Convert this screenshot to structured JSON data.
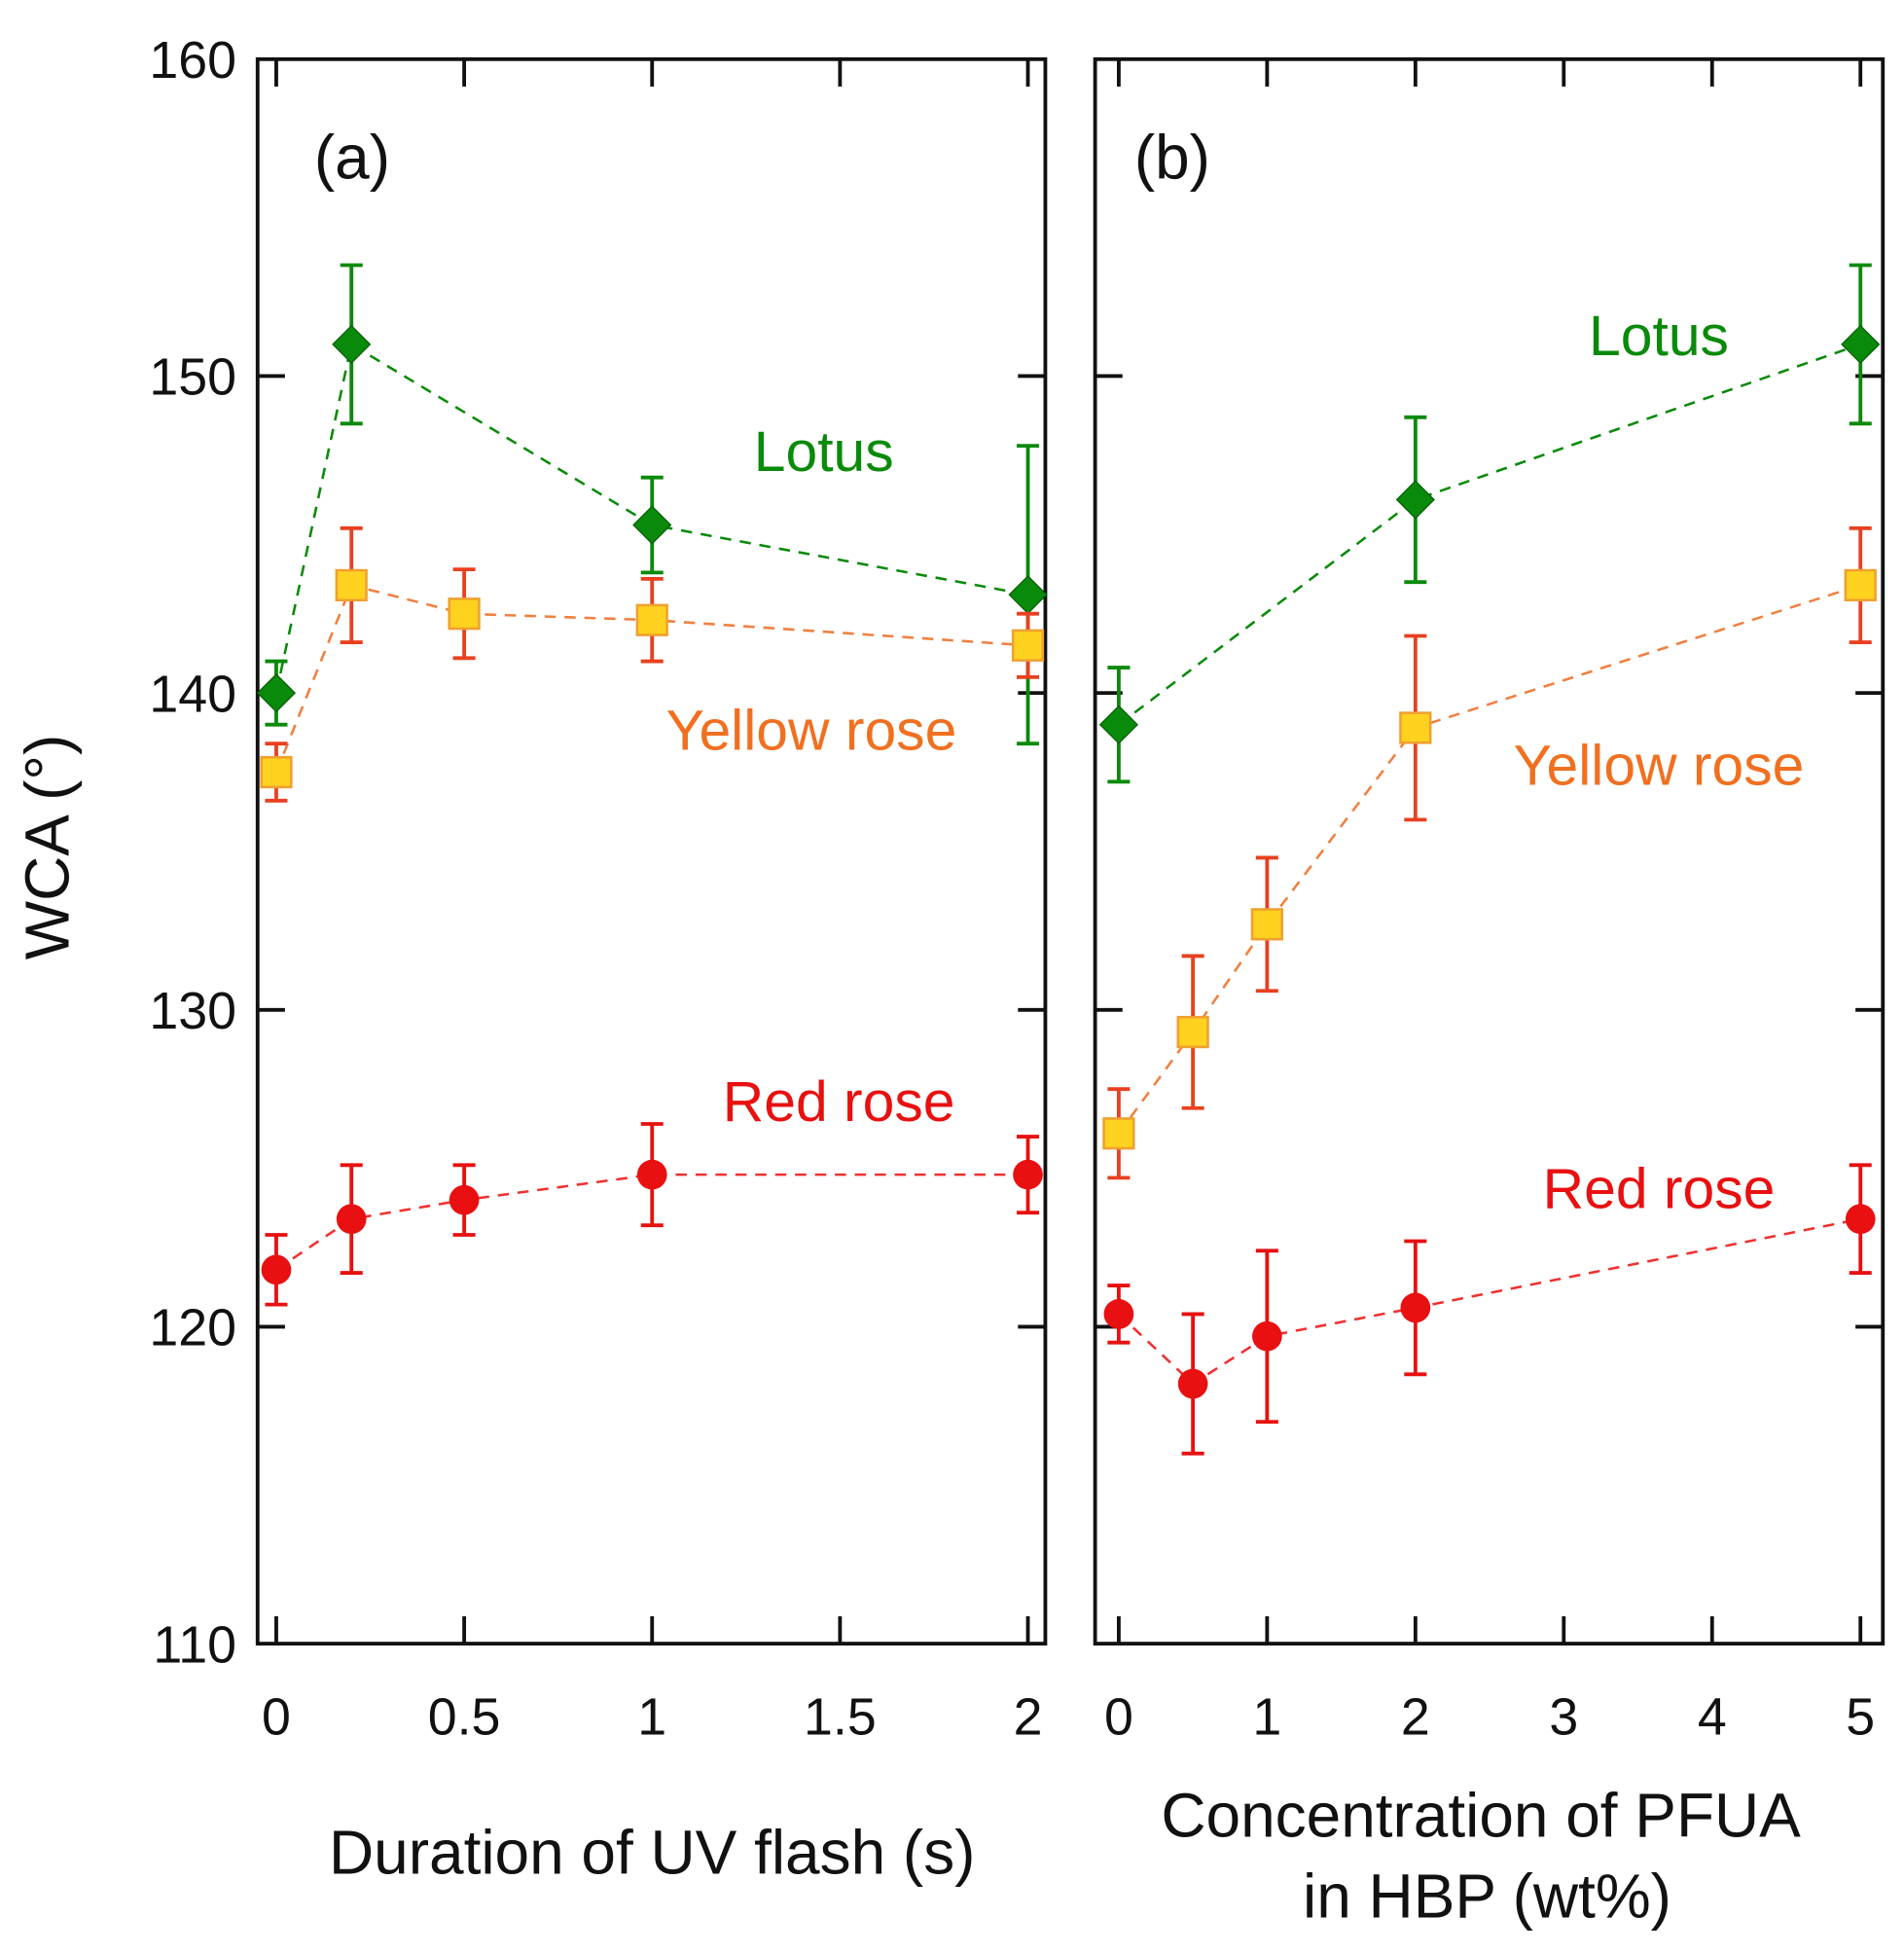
{
  "chart_data": [
    {
      "type": "line",
      "panel_label": "(a)",
      "xlabel": "Duration of UV flash (s)",
      "ylabel": "WCA (°)",
      "xlim": [
        -0.05,
        2.05
      ],
      "ylim": [
        110,
        160
      ],
      "xticks": [
        0,
        0.5,
        1,
        1.5,
        2
      ],
      "xtick_labels": [
        "0",
        "0.5",
        "1",
        "1.5",
        "2"
      ],
      "yticks": [
        110,
        120,
        130,
        140,
        150,
        160
      ],
      "ytick_labels": [
        "110",
        "120",
        "130",
        "140",
        "150",
        "160"
      ],
      "series": [
        {
          "name": "Lotus",
          "color": "#0a8a0a",
          "marker": "diamond",
          "x": [
            0,
            0.2,
            1,
            2
          ],
          "y": [
            140.0,
            151.0,
            145.3,
            143.1
          ],
          "err": [
            1.0,
            2.5,
            1.5,
            4.7
          ]
        },
        {
          "name": "Yellow rose",
          "color": "#f07020",
          "marker": "square",
          "x": [
            0,
            0.2,
            0.5,
            1,
            2
          ],
          "y": [
            137.5,
            143.4,
            142.5,
            142.3,
            141.5
          ],
          "err": [
            0.9,
            1.8,
            1.4,
            1.3,
            1.0
          ]
        },
        {
          "name": "Red rose",
          "color": "#e81010",
          "marker": "circle",
          "x": [
            0,
            0.2,
            0.5,
            1,
            2
          ],
          "y": [
            121.8,
            123.4,
            124.0,
            124.8,
            124.8
          ],
          "err": [
            1.1,
            1.7,
            1.1,
            1.6,
            1.2
          ]
        }
      ]
    },
    {
      "type": "line",
      "panel_label": "(b)",
      "xlabel": "Concentration of PFUA in HBP (wt%)",
      "xlabel_lines": [
        "Concentration of PFUA",
        "in HBP (wt%)"
      ],
      "xlim": [
        -0.15,
        5.15
      ],
      "ylim": [
        110,
        160
      ],
      "xticks": [
        0,
        1,
        2,
        3,
        4,
        5
      ],
      "xtick_labels": [
        "0",
        "1",
        "2",
        "3",
        "4",
        "5"
      ],
      "series": [
        {
          "name": "Lotus",
          "color": "#0a8a0a",
          "marker": "diamond",
          "x": [
            0,
            2,
            5
          ],
          "y": [
            139.0,
            146.1,
            151.0
          ],
          "err": [
            1.8,
            2.6,
            2.5
          ]
        },
        {
          "name": "Yellow rose",
          "color": "#f07020",
          "marker": "square",
          "x": [
            0,
            0.5,
            1,
            2,
            5
          ],
          "y": [
            126.1,
            129.3,
            132.7,
            138.9,
            143.4
          ],
          "err": [
            1.4,
            2.4,
            2.1,
            2.9,
            1.8
          ]
        },
        {
          "name": "Red rose",
          "color": "#e81010",
          "marker": "circle",
          "x": [
            0,
            0.5,
            1,
            2,
            5
          ],
          "y": [
            120.4,
            118.2,
            119.7,
            120.6,
            123.4
          ],
          "err": [
            0.9,
            2.2,
            2.7,
            2.1,
            1.7
          ]
        }
      ]
    }
  ]
}
